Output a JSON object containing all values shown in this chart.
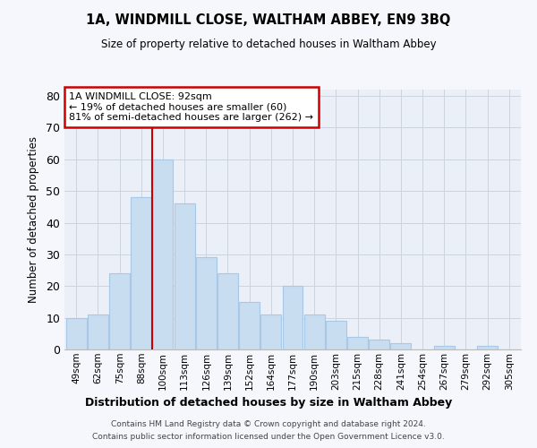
{
  "title": "1A, WINDMILL CLOSE, WALTHAM ABBEY, EN9 3BQ",
  "subtitle": "Size of property relative to detached houses in Waltham Abbey",
  "xlabel": "Distribution of detached houses by size in Waltham Abbey",
  "ylabel": "Number of detached properties",
  "bar_labels": [
    "49sqm",
    "62sqm",
    "75sqm",
    "88sqm",
    "100sqm",
    "113sqm",
    "126sqm",
    "139sqm",
    "152sqm",
    "164sqm",
    "177sqm",
    "190sqm",
    "203sqm",
    "215sqm",
    "228sqm",
    "241sqm",
    "254sqm",
    "267sqm",
    "279sqm",
    "292sqm",
    "305sqm"
  ],
  "bar_values": [
    10,
    11,
    24,
    48,
    60,
    46,
    29,
    24,
    15,
    11,
    20,
    11,
    9,
    4,
    3,
    2,
    0,
    1,
    0,
    1,
    0
  ],
  "bar_color": "#c8ddf0",
  "bar_edge_color": "#a8c8e8",
  "grid_color": "#ccd4e0",
  "background_color": "#eaeff8",
  "fig_background_color": "#f5f7fc",
  "vline_x_index": 3.5,
  "vline_color": "#cc0000",
  "ylim": [
    0,
    82
  ],
  "yticks": [
    0,
    10,
    20,
    30,
    40,
    50,
    60,
    70,
    80
  ],
  "annotation_title": "1A WINDMILL CLOSE: 92sqm",
  "annotation_line1": "← 19% of detached houses are smaller (60)",
  "annotation_line2": "81% of semi-detached houses are larger (262) →",
  "footer1": "Contains HM Land Registry data © Crown copyright and database right 2024.",
  "footer2": "Contains public sector information licensed under the Open Government Licence v3.0."
}
